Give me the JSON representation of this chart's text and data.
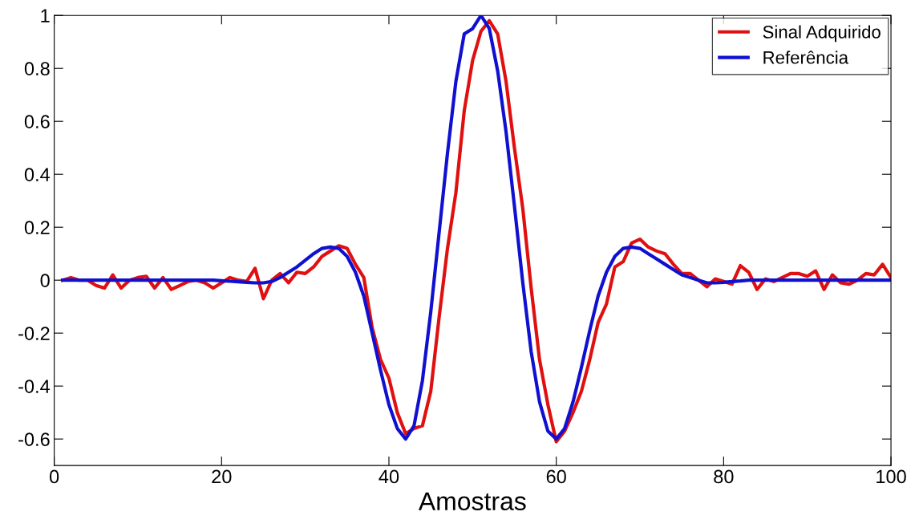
{
  "chart_data": {
    "type": "line",
    "xlabel": "Amostras",
    "x": [
      1,
      2,
      3,
      4,
      5,
      6,
      7,
      8,
      9,
      10,
      11,
      12,
      13,
      14,
      15,
      16,
      17,
      18,
      19,
      20,
      21,
      22,
      23,
      24,
      25,
      26,
      27,
      28,
      29,
      30,
      31,
      32,
      33,
      34,
      35,
      36,
      37,
      38,
      39,
      40,
      41,
      42,
      43,
      44,
      45,
      46,
      47,
      48,
      49,
      50,
      51,
      52,
      53,
      54,
      55,
      56,
      57,
      58,
      59,
      60,
      61,
      62,
      63,
      64,
      65,
      66,
      67,
      68,
      69,
      70,
      71,
      72,
      73,
      74,
      75,
      76,
      77,
      78,
      79,
      80,
      81,
      82,
      83,
      84,
      85,
      86,
      87,
      88,
      89,
      90,
      91,
      92,
      93,
      94,
      95,
      96,
      97,
      98,
      99,
      100
    ],
    "series": [
      {
        "name": "Sinal Adquirido",
        "color": "#e01010",
        "values": [
          0,
          0.01,
          0,
          0,
          -0.02,
          -0.03,
          0.02,
          -0.03,
          0,
          0.01,
          0.015,
          -0.03,
          0.01,
          -0.035,
          -0.02,
          -0.005,
          0,
          -0.01,
          -0.03,
          -0.01,
          0.01,
          0,
          -0.005,
          0.045,
          -0.07,
          0,
          0.025,
          -0.01,
          0.03,
          0.025,
          0.05,
          0.09,
          0.11,
          0.13,
          0.12,
          0.06,
          0.01,
          -0.18,
          -0.3,
          -0.37,
          -0.5,
          -0.58,
          -0.56,
          -0.55,
          -0.42,
          -0.14,
          0.12,
          0.33,
          0.64,
          0.83,
          0.94,
          0.98,
          0.93,
          0.75,
          0.5,
          0.27,
          -0.03,
          -0.3,
          -0.47,
          -0.61,
          -0.57,
          -0.5,
          -0.42,
          -0.3,
          -0.16,
          -0.09,
          0.05,
          0.07,
          0.14,
          0.155,
          0.125,
          0.11,
          0.1,
          0.06,
          0.025,
          0.025,
          0,
          -0.025,
          0.005,
          -0.005,
          -0.015,
          0.055,
          0.03,
          -0.035,
          0.005,
          -0.005,
          0.01,
          0.025,
          0.025,
          0.015,
          0.035,
          -0.035,
          0.02,
          -0.01,
          -0.015,
          0,
          0.025,
          0.02,
          0.06,
          0.01
        ]
      },
      {
        "name": "Referência",
        "color": "#1010d0",
        "values": [
          0,
          0,
          0,
          0,
          0,
          0,
          0,
          0,
          0,
          0,
          0,
          0,
          0,
          0,
          0,
          0,
          0,
          0,
          0,
          -0.002,
          -0.004,
          -0.006,
          -0.008,
          -0.01,
          -0.01,
          -0.005,
          0.01,
          0.03,
          0.05,
          0.075,
          0.1,
          0.12,
          0.125,
          0.12,
          0.09,
          0.03,
          -0.06,
          -0.2,
          -0.34,
          -0.47,
          -0.56,
          -0.6,
          -0.55,
          -0.38,
          -0.12,
          0.18,
          0.48,
          0.75,
          0.93,
          0.95,
          1.0,
          0.95,
          0.79,
          0.56,
          0.28,
          -0.01,
          -0.27,
          -0.46,
          -0.57,
          -0.6,
          -0.56,
          -0.46,
          -0.33,
          -0.19,
          -0.06,
          0.03,
          0.09,
          0.12,
          0.125,
          0.12,
          0.1,
          0.08,
          0.06,
          0.04,
          0.02,
          0.01,
          0,
          -0.01,
          -0.01,
          -0.008,
          -0.005,
          -0.003,
          0,
          0,
          0,
          0,
          0,
          0,
          0,
          0,
          0,
          0,
          0,
          0,
          0,
          0,
          0,
          0,
          0,
          0
        ]
      }
    ],
    "xlim": [
      0,
      100
    ],
    "xticks": [
      0,
      20,
      40,
      60,
      80,
      100
    ],
    "ylim": [
      -0.7,
      1
    ],
    "yticks": [
      -0.6,
      -0.4,
      -0.2,
      0,
      0.2,
      0.4,
      0.6,
      0.8,
      1
    ],
    "legend": "top right",
    "grid": false,
    "marker": "none",
    "line_style": "solid"
  }
}
